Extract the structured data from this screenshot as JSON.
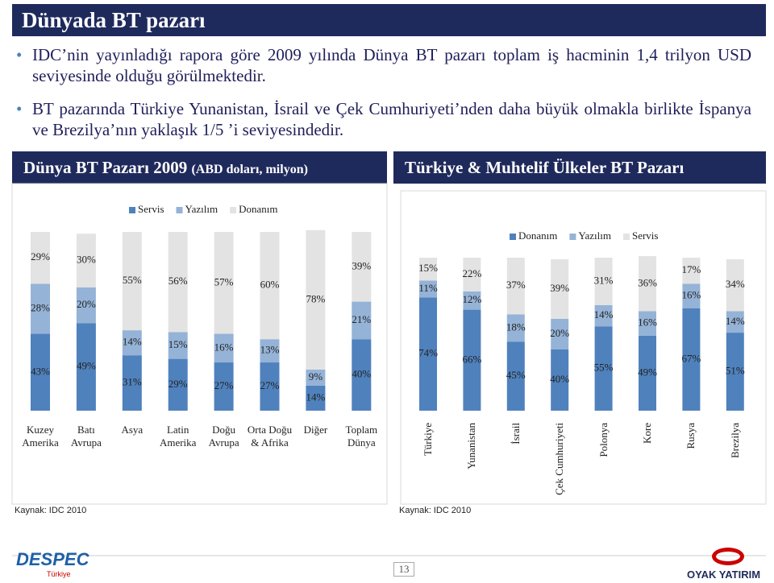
{
  "slide": {
    "title": "Dünyada BT pazarı",
    "bullets": [
      "IDC’nin yayınladığı rapora göre 2009 yılında Dünya BT pazarı toplam iş hacminin 1,4 trilyon USD seviyesinde olduğu görülmektedir.",
      "BT pazarında Türkiye Yunanistan, İsrail ve Çek Cumhuriyeti’nden daha büyük olmakla birlikte İspanya ve Brezilya’nın yaklaşık 1/5 ’i seviyesindedir."
    ],
    "page_number": "13",
    "logo_left": "DESPEC",
    "logo_left_sub": "Türkiye",
    "logo_right": "OYAK YATIRIM"
  },
  "chart_data": [
    {
      "type": "bar",
      "stacked": true,
      "title": "Dünya BT Pazarı 2009",
      "subtitle": "(ABD doları, milyon)",
      "legend": "top",
      "source": "Kaynak: IDC 2010",
      "categories": [
        "Kuzey Amerika",
        "Batı Avrupa",
        "Asya",
        "Latin Amerika",
        "Doğu Avrupa",
        "Orta Doğu & Afrika",
        "Diğer",
        "Toplam Dünya"
      ],
      "series": [
        {
          "name": "Servis",
          "color": "#4f81bd",
          "values": [
            43,
            49,
            31,
            29,
            27,
            27,
            14,
            40
          ],
          "value_labels": [
            "43%",
            "49%",
            "31%",
            "29%",
            "27%",
            "27%",
            "14%",
            "40%"
          ]
        },
        {
          "name": "Yazılım",
          "color": "#95b3d7",
          "values": [
            28,
            20,
            14,
            15,
            16,
            13,
            9,
            21
          ],
          "value_labels": [
            "28%",
            "20%",
            "14%",
            "15%",
            "16%",
            "13%",
            "9%",
            "21%"
          ]
        },
        {
          "name": "Donanım",
          "color": "#e3e3e3",
          "values": [
            29,
            30,
            55,
            56,
            57,
            60,
            78,
            39
          ],
          "value_labels": [
            "29%",
            "30%",
            "55%",
            "56%",
            "57%",
            "60%",
            "78%",
            "39%"
          ]
        }
      ]
    },
    {
      "type": "bar",
      "stacked": true,
      "title": "Türkiye & Muhtelif Ülkeler BT Pazarı",
      "legend": "top-right",
      "source": "Kaynak: IDC 2010",
      "categories": [
        "Türkiye",
        "Yunanistan",
        "İsrail",
        "Çek Cumhuriyeti",
        "Polonya",
        "Kore",
        "Rusya",
        "Brezilya"
      ],
      "series": [
        {
          "name": "Donanım",
          "color": "#4f81bd",
          "values": [
            74,
            66,
            45,
            40,
            55,
            49,
            67,
            51
          ],
          "value_labels": [
            "74%",
            "66%",
            "45%",
            "40%",
            "55%",
            "49%",
            "67%",
            "51%"
          ]
        },
        {
          "name": "Yazılım",
          "color": "#95b3d7",
          "values": [
            11,
            12,
            18,
            20,
            14,
            16,
            16,
            14
          ],
          "value_labels": [
            "11%",
            "12%",
            "18%",
            "20%",
            "14%",
            "16%",
            "16%",
            "14%"
          ]
        },
        {
          "name": "Servis",
          "color": "#e3e3e3",
          "values": [
            15,
            22,
            37,
            39,
            31,
            36,
            17,
            34
          ],
          "value_labels": [
            "15%",
            "22%",
            "37%",
            "39%",
            "31%",
            "36%",
            "17%",
            "34%"
          ]
        }
      ]
    }
  ]
}
